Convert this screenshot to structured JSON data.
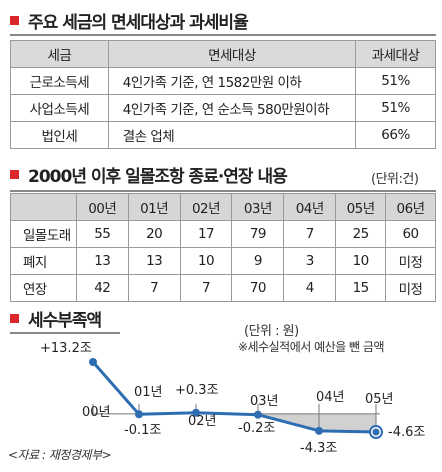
{
  "section1": {
    "title": "주요 세금의 면세대상과 과세비율",
    "headers": [
      "세금",
      "면세대상",
      "과세대상"
    ],
    "rows": [
      [
        "근로소득세",
        "4인가족 기준, 연 1582만원 이하",
        "51%"
      ],
      [
        "사업소득세",
        "4인가족 기준, 연 순소득 580만원이하",
        "51%"
      ],
      [
        "법인세",
        "결손 업체",
        "66%"
      ]
    ]
  },
  "section2": {
    "title": "2000년 이후 일몰조항 종료·연장 내용",
    "unit": "(단위:건)",
    "headers": [
      "",
      "00년",
      "01년",
      "02년",
      "03년",
      "04년",
      "05년",
      "06년"
    ],
    "rows": [
      [
        "일몰도래",
        "55",
        "20",
        "17",
        "79",
        "7",
        "25",
        "60"
      ],
      [
        "폐지",
        "13",
        "13",
        "10",
        "9",
        "3",
        "10",
        "미정"
      ],
      [
        "연장",
        "42",
        "7",
        "7",
        "70",
        "4",
        "15",
        "미정"
      ]
    ]
  },
  "section3": {
    "title": "세수부족액",
    "unit": "(단위 : 원)",
    "note": "※세수실적에서 예산을 뺀 금액",
    "source": "<자료 : 재정경제부>"
  },
  "chart_data": {
    "type": "line",
    "title": "세수부족액",
    "categories": [
      "00년",
      "01년",
      "02년",
      "03년",
      "04년",
      "05년"
    ],
    "values": [
      13.2,
      -0.1,
      0.3,
      -0.2,
      -4.3,
      -4.6
    ],
    "value_labels": [
      "+13.2조",
      "-0.1조",
      "+0.3조",
      "-0.2조",
      "-4.3조",
      "-4.6조"
    ],
    "ylim": [
      -4.6,
      13.2
    ],
    "line_color": "#2f6db3",
    "marker_color": "#2f6db3",
    "negative_fill": "#c9c9c9",
    "grid": false
  },
  "colors": {
    "accent": "#d9262b",
    "header_bg": "#dadada",
    "line": "#2f6db3"
  }
}
